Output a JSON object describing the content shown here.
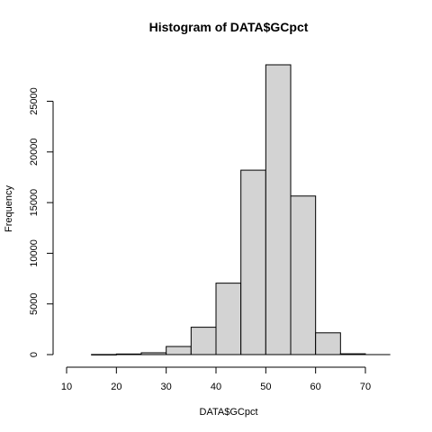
{
  "chart_data": {
    "type": "bar",
    "title": "Histogram of DATA$GCpct",
    "xlabel": "DATA$GCpct",
    "ylabel": "Frequency",
    "bins": [
      {
        "start": 15,
        "end": 20,
        "count": 10
      },
      {
        "start": 20,
        "end": 25,
        "count": 60
      },
      {
        "start": 25,
        "end": 30,
        "count": 180
      },
      {
        "start": 30,
        "end": 35,
        "count": 800
      },
      {
        "start": 35,
        "end": 40,
        "count": 2700
      },
      {
        "start": 40,
        "end": 45,
        "count": 7050
      },
      {
        "start": 45,
        "end": 50,
        "count": 18200
      },
      {
        "start": 50,
        "end": 55,
        "count": 28600
      },
      {
        "start": 55,
        "end": 60,
        "count": 15650
      },
      {
        "start": 60,
        "end": 65,
        "count": 2150
      },
      {
        "start": 65,
        "end": 70,
        "count": 80
      },
      {
        "start": 70,
        "end": 75,
        "count": 0
      }
    ],
    "x_ticks": [
      10,
      20,
      30,
      40,
      50,
      60,
      70
    ],
    "y_ticks": [
      0,
      5000,
      10000,
      15000,
      20000,
      25000
    ],
    "xlim": [
      10,
      75
    ],
    "ylim": [
      0,
      28600
    ],
    "grid": false,
    "colors": {
      "bar_fill": "#d3d3d3",
      "bar_stroke": "#000000"
    }
  }
}
